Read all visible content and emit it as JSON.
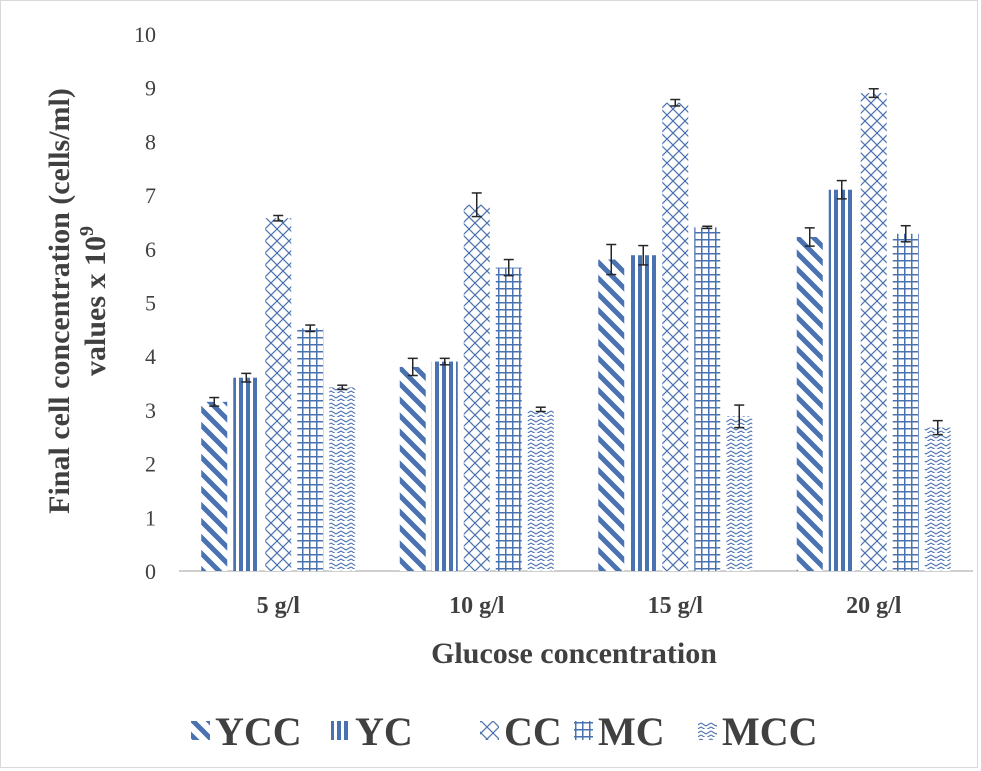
{
  "chart_data": {
    "type": "bar",
    "categories": [
      "5 g/l",
      "10 g/l",
      "15 g/l",
      "20 g/l"
    ],
    "series": [
      {
        "name": "YCC",
        "pattern": "diagonal-stripes",
        "values": [
          3.15,
          3.8,
          5.8,
          6.22
        ],
        "errors": [
          0.08,
          0.16,
          0.28,
          0.17
        ]
      },
      {
        "name": "YC",
        "pattern": "vertical-stripes",
        "values": [
          3.6,
          3.9,
          5.88,
          7.1
        ],
        "errors": [
          0.08,
          0.06,
          0.18,
          0.17
        ]
      },
      {
        "name": "CC",
        "pattern": "diamond-lattice",
        "values": [
          6.57,
          6.82,
          8.72,
          8.9
        ],
        "errors": [
          0.05,
          0.22,
          0.06,
          0.08
        ]
      },
      {
        "name": "MC",
        "pattern": "grid",
        "values": [
          4.52,
          5.65,
          6.4,
          6.28
        ],
        "errors": [
          0.06,
          0.15,
          0.02,
          0.15
        ]
      },
      {
        "name": "MCC",
        "pattern": "wave",
        "values": [
          3.42,
          3.01,
          2.88,
          2.67
        ],
        "errors": [
          0.04,
          0.04,
          0.21,
          0.13
        ]
      }
    ],
    "ylim": [
      0,
      10
    ],
    "yticks": [
      0,
      1,
      2,
      3,
      4,
      5,
      6,
      7,
      8,
      9,
      10
    ],
    "xlabel": "Glucose concentration",
    "ylabel_line1": "Final cell concentration (cells/ml)",
    "ylabel_line2": "values x 10",
    "ylabel_exponent": "9",
    "grid": false,
    "legend_position": "bottom",
    "colors": {
      "bar": "#4a72b0",
      "error_bar": "#262626",
      "text": "#404040",
      "axis": "#bfbfbf"
    }
  }
}
